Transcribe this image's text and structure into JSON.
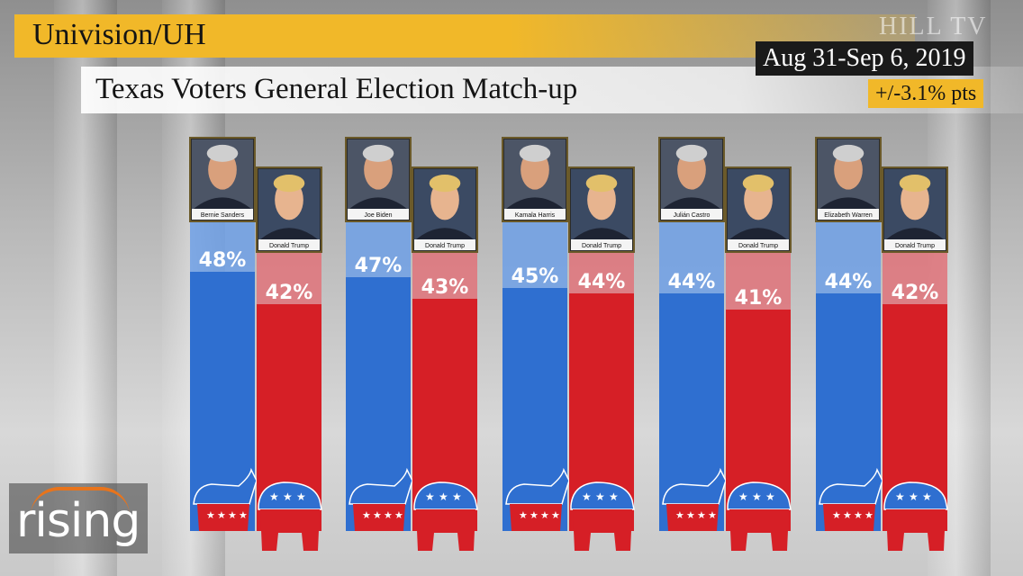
{
  "source": "Univision/UH",
  "title": "Texas Voters General Election Match-up",
  "date_range": "Aug 31-Sep 6, 2019",
  "margin_of_error": "+/-3.1% pts",
  "watermark": "HILL TV",
  "logo_text": "rising",
  "colors": {
    "democrat": "#2f6fd0",
    "republican": "#d61f26",
    "accent": "#f1b829"
  },
  "chart_data": {
    "type": "bar",
    "title": "Texas Voters General Election Match-up",
    "xlabel": "",
    "ylabel": "",
    "ylim": [
      0,
      100
    ],
    "matchups": [
      {
        "democrat": "Bernie Sanders",
        "dem_value": 48,
        "dem_label": "48%",
        "republican": "Donald Trump",
        "rep_value": 42,
        "rep_label": "42%"
      },
      {
        "democrat": "Joe Biden",
        "dem_value": 47,
        "dem_label": "47%",
        "republican": "Donald Trump",
        "rep_value": 43,
        "rep_label": "43%"
      },
      {
        "democrat": "Kamala Harris",
        "dem_value": 45,
        "dem_label": "45%",
        "republican": "Donald Trump",
        "rep_value": 44,
        "rep_label": "44%"
      },
      {
        "democrat": "Julián Castro",
        "dem_value": 44,
        "dem_label": "44%",
        "republican": "Donald Trump",
        "rep_value": 41,
        "rep_label": "41%"
      },
      {
        "democrat": "Elizabeth Warren",
        "dem_value": 44,
        "dem_label": "44%",
        "republican": "Donald Trump",
        "rep_value": 42,
        "rep_label": "42%"
      }
    ]
  }
}
